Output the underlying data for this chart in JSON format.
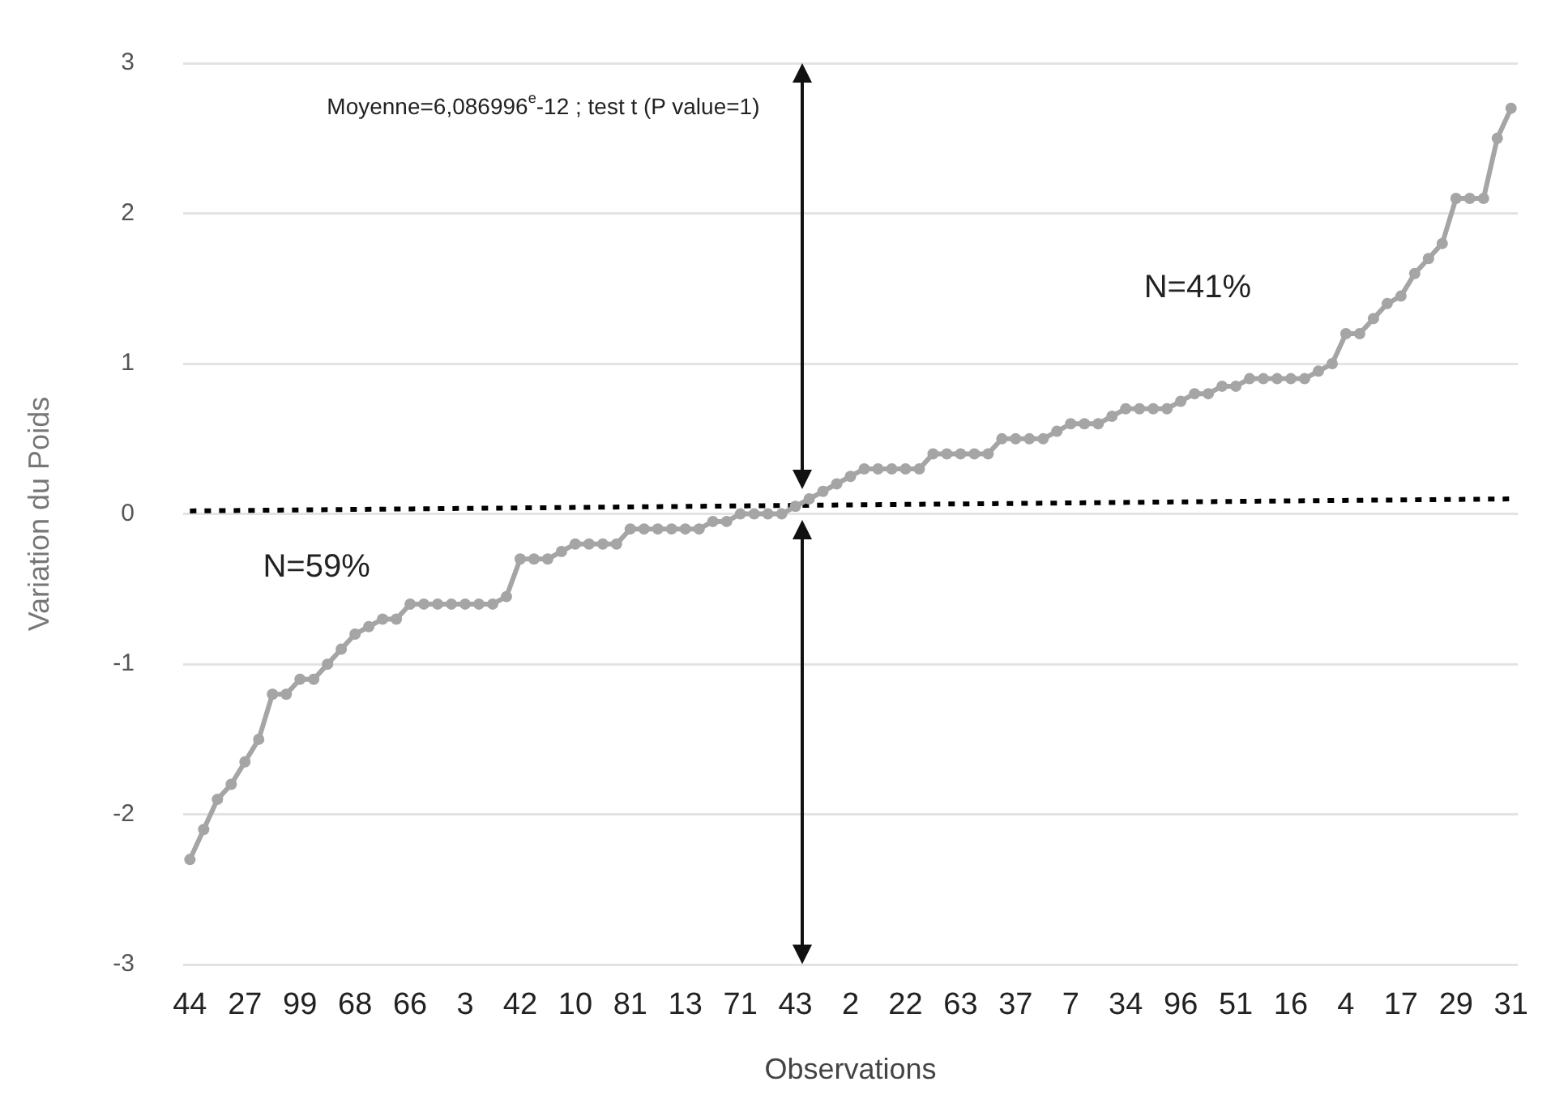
{
  "chart_data": {
    "type": "line",
    "xlabel": "Observations",
    "ylabel": "Variation du Poids",
    "annotations": [
      "Moyenne=6,086996$^{e}$-12 ; test t (P value=1)",
      "N=59%",
      "N=41%"
    ],
    "categories": [
      "44",
      null,
      null,
      null,
      "27",
      null,
      null,
      null,
      "99",
      null,
      null,
      null,
      "68",
      null,
      null,
      null,
      "66",
      null,
      null,
      null,
      "3",
      null,
      null,
      null,
      "42",
      null,
      null,
      null,
      "10",
      null,
      null,
      null,
      "81",
      null,
      null,
      null,
      "13",
      null,
      null,
      null,
      "71",
      null,
      null,
      null,
      "43",
      null,
      null,
      null,
      "2",
      null,
      null,
      null,
      "22",
      null,
      null,
      null,
      "63",
      null,
      null,
      null,
      "37",
      null,
      null,
      null,
      "7",
      null,
      null,
      null,
      "34",
      null,
      null,
      null,
      "96",
      null,
      null,
      null,
      "51",
      null,
      null,
      null,
      "16",
      null,
      null,
      null,
      "4",
      null,
      null,
      null,
      "17",
      null,
      null,
      null,
      "29",
      null,
      null,
      null,
      "31"
    ],
    "series": [
      {
        "color": "#a5a5a5",
        "values": [
          -2.3,
          -2.1,
          -1.9,
          -1.8,
          -1.65,
          -1.5,
          -1.2,
          -1.2,
          -1.1,
          -1.1,
          -1.0,
          -0.9,
          -0.8,
          -0.75,
          -0.7,
          -0.7,
          -0.6,
          -0.6,
          -0.6,
          -0.6,
          -0.6,
          -0.6,
          -0.6,
          -0.55,
          -0.3,
          -0.3,
          -0.3,
          -0.25,
          -0.2,
          -0.2,
          -0.2,
          -0.2,
          -0.1,
          -0.1,
          -0.1,
          -0.1,
          -0.1,
          -0.1,
          -0.05,
          -0.05,
          0,
          0,
          0,
          0,
          0.05,
          0.1,
          0.15,
          0.2,
          0.25,
          0.3,
          0.3,
          0.3,
          0.3,
          0.3,
          0.4,
          0.4,
          0.4,
          0.4,
          0.4,
          0.5,
          0.5,
          0.5,
          0.5,
          0.55,
          0.6,
          0.6,
          0.6,
          0.65,
          0.7,
          0.7,
          0.7,
          0.7,
          0.75,
          0.8,
          0.8,
          0.85,
          0.85,
          0.9,
          0.9,
          0.9,
          0.9,
          0.9,
          0.95,
          1.0,
          1.2,
          1.2,
          1.3,
          1.4,
          1.45,
          1.6,
          1.7,
          1.8,
          2.1,
          2.1,
          2.1,
          2.5,
          2.7
        ]
      },
      {
        "type": "line",
        "color": "#000000",
        "marker": "none",
        "line_style": "dotted",
        "values": [
          0.02,
          null,
          null,
          null,
          null,
          null,
          null,
          null,
          null,
          null,
          null,
          null,
          null,
          null,
          null,
          null,
          null,
          null,
          null,
          null,
          null,
          null,
          null,
          null,
          null,
          null,
          null,
          null,
          null,
          null,
          null,
          null,
          null,
          null,
          null,
          null,
          null,
          null,
          null,
          null,
          null,
          null,
          null,
          null,
          null,
          null,
          null,
          null,
          null,
          null,
          null,
          null,
          null,
          null,
          null,
          null,
          null,
          null,
          null,
          null,
          null,
          null,
          null,
          null,
          null,
          null,
          null,
          null,
          null,
          null,
          null,
          null,
          null,
          null,
          null,
          null,
          null,
          null,
          null,
          null,
          null,
          null,
          null,
          null,
          null,
          null,
          null,
          null,
          null,
          null,
          null,
          null,
          null,
          null,
          null,
          null,
          0.1
        ]
      }
    ],
    "ylim": [
      -3,
      3
    ],
    "yticks": [
      -3,
      -2,
      -1,
      0,
      1,
      2,
      3
    ],
    "grid": "y",
    "legend": false,
    "marker": "circle",
    "line_style": "solid"
  }
}
